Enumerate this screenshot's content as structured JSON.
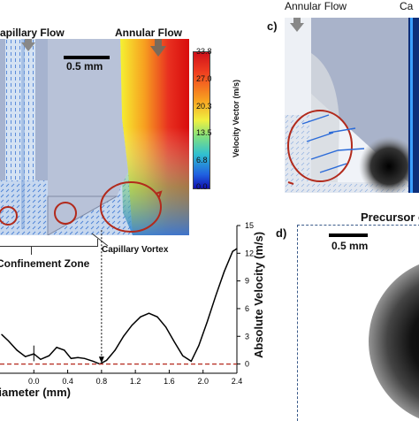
{
  "panel_b": {
    "capillary_flow_label": "apillary Flow",
    "annular_flow_label": "Annular Flow",
    "scale_bar": "0.5 mm",
    "colorbar_title": "Velocity Vector (m/s)",
    "colorbar_ticks": [
      "33.8",
      "27.0",
      "20.3",
      "13.5",
      "6.8",
      "0.0"
    ],
    "confinement_label": "Confinement Zone",
    "vortex_label": "Capillary Vortex"
  },
  "panel_c": {
    "letter": "c)",
    "annular_flow_label": "Annular Flow",
    "capillary_label_fragment": "Ca"
  },
  "panel_d": {
    "letter": "d)",
    "title_fragment": "Precursor c",
    "scale_bar": "0.5 mm"
  },
  "chart_data": {
    "type": "line",
    "title": "",
    "xlabel": "Diameter (mm)",
    "ylabel": "Absolute Velocity (m/s)",
    "xlim": [
      -0.4,
      2.4
    ],
    "ylim": [
      -1,
      15
    ],
    "x_ticks": [
      "0.0",
      "0.4",
      "0.8",
      "1.2",
      "1.6",
      "2.0",
      "2.4"
    ],
    "y_ticks": [
      "0",
      "3",
      "6",
      "9",
      "12",
      "15"
    ],
    "series": [
      {
        "style": "solid-black",
        "x": [
          -0.38,
          -0.3,
          -0.2,
          -0.1,
          0.0,
          0.08,
          0.18,
          0.27,
          0.36,
          0.44,
          0.52,
          0.6,
          0.7,
          0.78,
          0.86,
          0.96,
          1.06,
          1.16,
          1.26,
          1.36,
          1.46,
          1.56,
          1.66,
          1.76,
          1.86,
          1.95,
          2.05,
          2.15,
          2.25,
          2.35,
          2.4
        ],
        "y": [
          3.2,
          2.5,
          1.5,
          0.8,
          1.1,
          0.5,
          0.9,
          1.8,
          1.5,
          0.6,
          0.7,
          0.6,
          0.3,
          0.0,
          0.4,
          1.5,
          3.0,
          4.2,
          5.1,
          5.5,
          5.1,
          4.0,
          2.4,
          0.9,
          0.3,
          2.0,
          4.6,
          7.4,
          10.0,
          12.2,
          12.5
        ]
      },
      {
        "style": "dashed-red-zero",
        "x": [
          -0.4,
          2.4
        ],
        "y": [
          0,
          0
        ]
      }
    ]
  }
}
